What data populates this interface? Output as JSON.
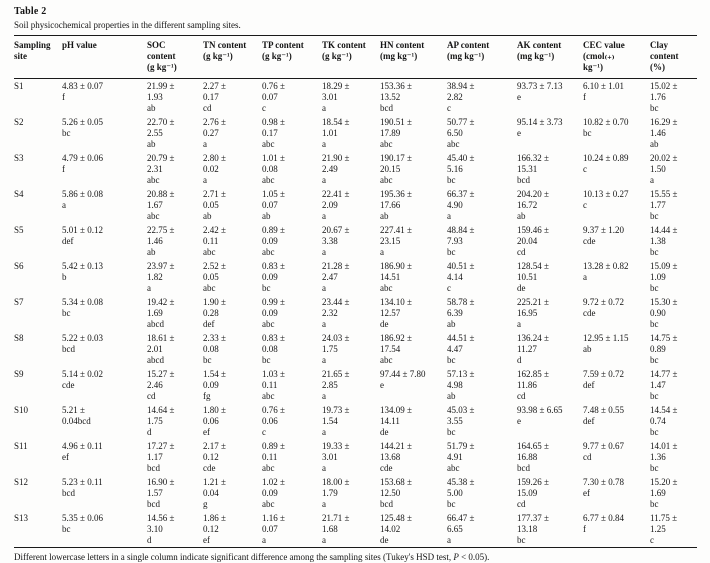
{
  "page": {
    "title": "Table 2",
    "caption": "Soil physicochemical properties in the different sampling sites."
  },
  "table": {
    "columns": [
      "Sampling\nsite",
      "pH value",
      "SOC\ncontent\n(g kg⁻¹)",
      "TN content\n(g kg⁻¹)",
      "TP content\n(g kg⁻¹)",
      "TK content\n(g kg⁻¹)",
      "HN content\n(mg kg⁻¹)",
      "AP content\n(mg kg⁻¹)",
      "AK content\n(mg kg⁻¹)",
      "CEC value\n(cmol₍₊₎\nkg⁻¹)",
      "Clay\ncontent\n(%)"
    ],
    "rows": [
      [
        "S1",
        "4.83 ± 0.07\nf",
        "21.99 ±\n1.93\nab",
        "2.27 ±\n0.17\ncd",
        "0.76 ±\n0.07\nc",
        "18.29 ±\n3.01\na",
        "153.36 ±\n13.52\nbcd",
        "38.94 ±\n2.82\nc",
        "93.73 ± 7.13\ne",
        "6.10 ± 1.01\nf",
        "15.02 ±\n1.76\nbc"
      ],
      [
        "S2",
        "5.26 ± 0.05\nbc",
        "22.70 ±\n2.55\nab",
        "2.76 ±\n0.27\na",
        "0.98 ±\n0.17\nabc",
        "18.54 ±\n1.01\na",
        "190.51 ±\n17.89\nabc",
        "50.77 ±\n6.50\nabc",
        "95.14 ± 3.73\ne",
        "10.82 ± 0.70\nbc",
        "16.29 ±\n1.46\nab"
      ],
      [
        "S3",
        "4.79 ± 0.06\nf",
        "20.79 ±\n2.31\nabc",
        "2.80 ±\n0.02\na",
        "1.01 ±\n0.08\nabc",
        "21.90 ±\n2.49\na",
        "190.17 ±\n20.15\nabc",
        "45.40 ±\n5.16\nbc",
        "166.32 ±\n15.31\nbcd",
        "10.24 ± 0.89\nc",
        "20.02 ±\n1.50\na"
      ],
      [
        "S4",
        "5.86 ± 0.08\na",
        "20.88 ±\n1.67\nabc",
        "2.71 ±\n0.05\nab",
        "1.05 ±\n0.07\nab",
        "22.41 ±\n2.09\na",
        "195.36 ±\n17.66\nab",
        "66.37 ±\n4.90\na",
        "204.20 ±\n16.72\nab",
        "10.13 ± 0.27\nc",
        "15.55 ±\n1.77\nbc"
      ],
      [
        "S5",
        "5.01 ± 0.12\ndef",
        "22.75 ±\n1.46\nab",
        "2.42 ±\n0.11\nabc",
        "0.89 ±\n0.09\nabc",
        "20.67 ±\n3.38\na",
        "227.41 ±\n23.15\na",
        "48.84 ±\n7.93\nbc",
        "159.46 ±\n20.04\ncd",
        "9.37 ± 1.20\ncde",
        "14.44 ±\n1.38\nbc"
      ],
      [
        "S6",
        "5.42 ± 0.13\nb",
        "23.97 ±\n1.82\na",
        "2.52 ±\n0.05\nabc",
        "0.83 ±\n0.09\nbc",
        "21.28 ±\n2.47\na",
        "186.90 ±\n14.51\nabc",
        "40.51 ±\n4.14\nc",
        "128.54 ±\n10.51\nde",
        "13.28 ± 0.82\na",
        "15.09 ±\n1.09\nbc"
      ],
      [
        "S7",
        "5.34 ± 0.08\nbc",
        "19.42 ±\n1.69\nabcd",
        "1.90 ±\n0.28\ndef",
        "0.99 ±\n0.09\nabc",
        "23.44 ±\n2.32\na",
        "134.10 ±\n12.57\nde",
        "58.78 ±\n6.39\nab",
        "225.21 ±\n16.95\na",
        "9.72 ± 0.72\ncde",
        "15.30 ±\n0.90\nbc"
      ],
      [
        "S8",
        "5.22 ± 0.03\nbcd",
        "18.61 ±\n2.01\nabcd",
        "2.33 ±\n0.08\nbc",
        "0.83 ±\n0.08\nbc",
        "24.03 ±\n1.75\na",
        "186.92 ±\n17.54\nabc",
        "44.51 ±\n4.47\nbc",
        "136.24 ±\n11.27\nd",
        "12.95 ± 1.15\nab",
        "14.75 ±\n0.89\nbc"
      ],
      [
        "S9",
        "5.14 ± 0.02\ncde",
        "15.27 ±\n2.46\ncd",
        "1.54 ±\n0.09\nfg",
        "1.03 ±\n0.11\nabc",
        "21.65 ±\n2.85\na",
        "97.44 ± 7.80\ne",
        "57.13 ±\n4.98\nab",
        "162.85 ±\n11.86\ncd",
        "7.59 ± 0.72\ndef",
        "14.77 ±\n1.47\nbc"
      ],
      [
        "S10",
        "5.21 ±\n0.04bcd",
        "14.64 ±\n1.75\nd",
        "1.80 ±\n0.06\nef",
        "0.76 ±\n0.06\nc",
        "19.73 ±\n1.54\na",
        "134.09 ±\n14.11\nde",
        "45.03 ±\n3.55\nbc",
        "93.98 ± 6.65\ne",
        "7.48 ± 0.55\ndef",
        "14.54 ±\n0.74\nbc"
      ],
      [
        "S11",
        "4.96 ± 0.11\nef",
        "17.27 ±\n1.17\nbcd",
        "2.17 ±\n0.12\ncde",
        "0.89 ±\n0.11\nabc",
        "19.33 ±\n3.01\na",
        "144.21 ±\n13.68\ncde",
        "51.79 ±\n4.91\nabc",
        "164.65 ±\n16.88\nbcd",
        "9.77 ± 0.67\ncd",
        "14.01 ±\n1.36\nbc"
      ],
      [
        "S12",
        "5.23 ± 0.11\nbcd",
        "16.90 ±\n1.57\nbcd",
        "1.21 ±\n0.04\ng",
        "1.02 ±\n0.09\nabc",
        "18.00 ±\n1.79\na",
        "153.68 ±\n12.50\nbcd",
        "45.38 ±\n5.00\nbc",
        "159.26 ±\n15.09\ncd",
        "7.30 ± 0.78\nef",
        "15.20 ±\n1.69\nbc"
      ],
      [
        "S13",
        "5.35 ± 0.06\nbc",
        "14.56 ±\n3.10\nd",
        "1.86 ±\n0.12\nef",
        "1.16 ±\n0.07\na",
        "21.71 ±\n1.68\na",
        "125.48 ±\n14.02\nde",
        "66.47 ±\n6.65\na",
        "177.37 ±\n13.18\nbc",
        "6.77 ± 0.84\nf",
        "11.75 ±\n1.25\nc"
      ]
    ]
  },
  "footnote": {
    "before_italic": "Different lowercase letters in a single column indicate significant difference among the sampling sites (Tukey's HSD test, ",
    "italic": "P",
    "after_italic": " < 0.05)."
  }
}
